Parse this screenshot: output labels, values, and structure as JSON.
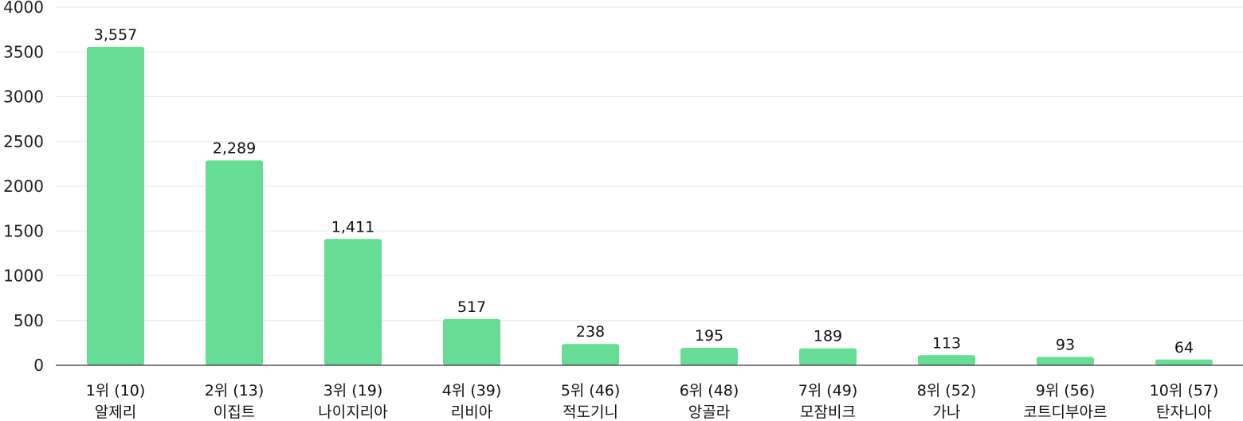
{
  "chart_data": {
    "type": "bar",
    "title": "",
    "xlabel": "",
    "ylabel": "",
    "ylim": [
      0,
      4000
    ],
    "yticks": [
      0,
      500,
      1000,
      1500,
      2000,
      2500,
      3000,
      3500,
      4000
    ],
    "grid": true,
    "legend": "none",
    "bar_color": "#66dc94",
    "categories": [
      [
        "1위 (10)",
        "알제리"
      ],
      [
        "2위 (13)",
        "이집트"
      ],
      [
        "3위 (19)",
        "나이지리아"
      ],
      [
        "4위 (39)",
        "리비아"
      ],
      [
        "5위 (46)",
        "적도기니"
      ],
      [
        "6위 (48)",
        "앙골라"
      ],
      [
        "7위 (49)",
        "모잠비크"
      ],
      [
        "8위 (52)",
        "가나"
      ],
      [
        "9위 (56)",
        "코트디부아르"
      ],
      [
        "10위 (57)",
        "탄자니아"
      ]
    ],
    "values": [
      3557,
      2289,
      1411,
      517,
      238,
      195,
      189,
      113,
      93,
      64
    ],
    "value_labels": [
      "3,557",
      "2,289",
      "1,411",
      "517",
      "238",
      "195",
      "189",
      "113",
      "93",
      "64"
    ]
  }
}
